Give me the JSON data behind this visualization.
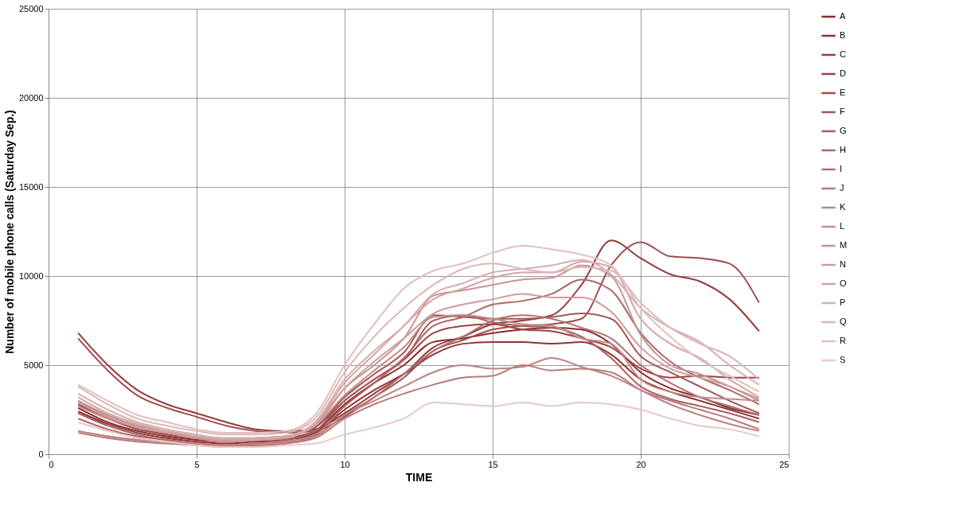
{
  "chart_data": {
    "type": "line",
    "xlabel": "TIME",
    "ylabel": "Number of mobile phone calls (Saturday Sep.)",
    "x": [
      1,
      2,
      3,
      4,
      5,
      6,
      7,
      8,
      9,
      10,
      11,
      12,
      13,
      14,
      15,
      16,
      17,
      18,
      19,
      20,
      21,
      22,
      23,
      24
    ],
    "xlim": [
      0,
      25
    ],
    "xticks": [
      0,
      5,
      10,
      15,
      20,
      25
    ],
    "ylim": [
      0,
      25000
    ],
    "yticks": [
      0,
      5000,
      10000,
      15000,
      20000,
      25000
    ],
    "grid": true,
    "legend": "right",
    "marker": "none",
    "line_style": "solid",
    "series": [
      {
        "name": "A",
        "color": "#8b2a2a",
        "values": [
          2600,
          1800,
          1300,
          1000,
          800,
          700,
          800,
          900,
          1300,
          2800,
          4000,
          5000,
          6300,
          6500,
          6800,
          7000,
          7100,
          7000,
          6200,
          4600,
          3700,
          3200,
          2600,
          2200
        ]
      },
      {
        "name": "B",
        "color": "#903333",
        "values": [
          2400,
          1700,
          1200,
          900,
          700,
          600,
          700,
          800,
          1200,
          2500,
          3600,
          4500,
          5600,
          6200,
          6300,
          6300,
          6200,
          6300,
          5600,
          4200,
          3500,
          3000,
          2500,
          2000
        ]
      },
      {
        "name": "C",
        "color": "#953c3c",
        "values": [
          6800,
          5000,
          3600,
          2800,
          2300,
          1800,
          1400,
          1300,
          1400,
          2300,
          3400,
          4500,
          6000,
          6600,
          7300,
          7500,
          7800,
          9500,
          12000,
          11000,
          10100,
          9700,
          8700,
          6900
        ]
      },
      {
        "name": "D",
        "color": "#9a4444",
        "values": [
          2800,
          2000,
          1400,
          1100,
          900,
          800,
          900,
          1000,
          1500,
          3000,
          4200,
          5300,
          6800,
          7200,
          7300,
          7000,
          6900,
          6500,
          6000,
          4800,
          4300,
          4400,
          4300,
          4300
        ]
      },
      {
        "name": "E",
        "color": "#9f4d4d",
        "values": [
          6500,
          4700,
          3300,
          2600,
          2100,
          1600,
          1300,
          1200,
          1300,
          2100,
          3200,
          4300,
          5800,
          6400,
          7000,
          7200,
          7300,
          7600,
          10600,
          11900,
          11100,
          11000,
          10700,
          8500
        ]
      },
      {
        "name": "F",
        "color": "#a45656",
        "values": [
          3000,
          2100,
          1500,
          1100,
          900,
          700,
          800,
          1000,
          1500,
          3200,
          4500,
          5700,
          7800,
          7700,
          7600,
          7600,
          7700,
          7900,
          7600,
          5500,
          4600,
          3800,
          3000,
          2300
        ]
      },
      {
        "name": "G",
        "color": "#a95f5f",
        "values": [
          2300,
          1600,
          1100,
          800,
          600,
          500,
          600,
          800,
          1300,
          3000,
          4200,
          5300,
          7500,
          7800,
          7400,
          7200,
          7100,
          6600,
          5400,
          3800,
          3100,
          2700,
          2300,
          1800
        ]
      },
      {
        "name": "H",
        "color": "#ae6767",
        "values": [
          2000,
          1400,
          1000,
          800,
          600,
          500,
          600,
          700,
          1100,
          2700,
          4000,
          5400,
          7200,
          7700,
          8400,
          8600,
          9000,
          9800,
          9200,
          6800,
          5200,
          4300,
          3600,
          2800
        ]
      },
      {
        "name": "I",
        "color": "#b37070",
        "values": [
          1300,
          1000,
          800,
          700,
          600,
          500,
          500,
          600,
          1000,
          2200,
          3200,
          4500,
          5800,
          6600,
          7500,
          7800,
          7600,
          7100,
          6500,
          5000,
          4000,
          3200,
          2700,
          2200
        ]
      },
      {
        "name": "J",
        "color": "#b97979",
        "values": [
          1200,
          900,
          700,
          600,
          500,
          400,
          500,
          600,
          900,
          2000,
          2800,
          3400,
          3900,
          4300,
          4400,
          5000,
          4700,
          4800,
          4600,
          3600,
          3000,
          2500,
          2000,
          1400
        ]
      },
      {
        "name": "K",
        "color": "#be8282",
        "values": [
          1300,
          1000,
          800,
          700,
          600,
          500,
          600,
          700,
          1000,
          2200,
          3000,
          3800,
          4600,
          5000,
          4800,
          4900,
          5400,
          4900,
          4400,
          3600,
          2800,
          2200,
          1700,
          1300
        ]
      },
      {
        "name": "L",
        "color": "#c38b8b",
        "values": [
          2700,
          2000,
          1500,
          1200,
          1000,
          900,
          900,
          1000,
          1600,
          3300,
          4700,
          6000,
          7700,
          7800,
          7600,
          7300,
          7200,
          6500,
          6200,
          4200,
          3500,
          3200,
          3100,
          3000
        ]
      },
      {
        "name": "M",
        "color": "#c89393",
        "values": [
          3000,
          2200,
          1600,
          1300,
          1000,
          800,
          900,
          1000,
          1700,
          3700,
          5000,
          6500,
          8900,
          9200,
          9500,
          9800,
          9900,
          10600,
          10000,
          6700,
          5000,
          4500,
          3800,
          3000
        ]
      },
      {
        "name": "N",
        "color": "#cd9c9c",
        "values": [
          2900,
          2100,
          1500,
          1200,
          900,
          700,
          800,
          1000,
          1600,
          3700,
          5200,
          6500,
          7900,
          8400,
          8700,
          9000,
          8800,
          8800,
          8000,
          6000,
          4800,
          4300,
          3800,
          3100
        ]
      },
      {
        "name": "O",
        "color": "#d2a5a5",
        "values": [
          3200,
          2300,
          1700,
          1300,
          1000,
          800,
          800,
          900,
          1700,
          4000,
          5600,
          7200,
          8700,
          9300,
          9900,
          10200,
          10200,
          10800,
          10500,
          7600,
          6200,
          5400,
          4200,
          3200
        ]
      },
      {
        "name": "P",
        "color": "#d7aeae",
        "values": [
          3400,
          2500,
          1800,
          1400,
          1100,
          900,
          900,
          1000,
          1800,
          4200,
          5800,
          7200,
          9000,
          9600,
          10200,
          10400,
          10600,
          10900,
          10100,
          8200,
          7100,
          6300,
          5000,
          3900
        ]
      },
      {
        "name": "Q",
        "color": "#dcb7b7",
        "values": [
          3800,
          2800,
          2000,
          1600,
          1300,
          1100,
          1100,
          1200,
          2000,
          4600,
          6600,
          8200,
          9500,
          10400,
          10700,
          10400,
          10200,
          10500,
          10300,
          8500,
          7100,
          6200,
          5500,
          4200
        ]
      },
      {
        "name": "R",
        "color": "#e1bfbf",
        "values": [
          3900,
          3000,
          2200,
          1800,
          1400,
          1200,
          1200,
          1300,
          2200,
          5000,
          7300,
          9300,
          10300,
          10700,
          11300,
          11700,
          11500,
          11200,
          10600,
          8200,
          6600,
          5300,
          4400,
          3500
        ]
      },
      {
        "name": "S",
        "color": "#e6c8c8",
        "values": [
          1800,
          1300,
          900,
          700,
          500,
          400,
          400,
          500,
          600,
          1100,
          1500,
          2000,
          2900,
          2800,
          2700,
          2900,
          2700,
          2900,
          2800,
          2500,
          2000,
          1600,
          1400,
          1000
        ]
      }
    ]
  }
}
